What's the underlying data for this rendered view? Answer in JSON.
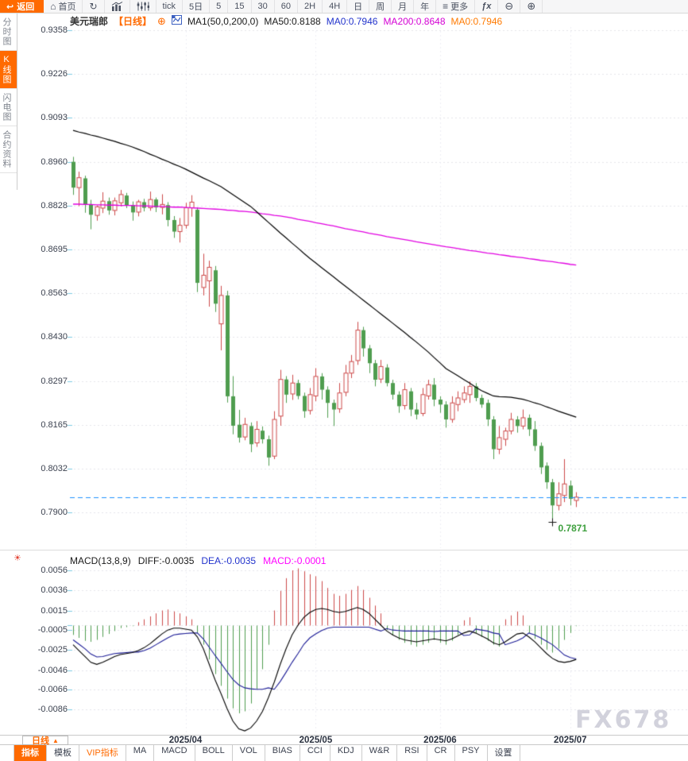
{
  "toolbar": {
    "back_label": "返回",
    "items": [
      {
        "icon": "home-icon",
        "label": "首页"
      },
      {
        "icon": "refresh-icon",
        "label": ""
      },
      {
        "icon": "bar-chart-icon",
        "label": ""
      },
      {
        "icon": "candles-adjust-icon",
        "label": ""
      },
      {
        "label": "tick"
      },
      {
        "label": "5日"
      },
      {
        "label": "5"
      },
      {
        "label": "15"
      },
      {
        "label": "30"
      },
      {
        "label": "60"
      },
      {
        "label": "2H"
      },
      {
        "label": "4H"
      },
      {
        "label": "日"
      },
      {
        "label": "周"
      },
      {
        "label": "月"
      },
      {
        "label": "年"
      },
      {
        "icon": "menu-icon",
        "label": "更多"
      },
      {
        "icon": "fx-icon",
        "label": ""
      },
      {
        "icon": "zoom-out-icon",
        "label": ""
      },
      {
        "icon": "zoom-in-icon",
        "label": ""
      }
    ]
  },
  "sidebar": {
    "items": [
      {
        "label": "分时图",
        "active": false
      },
      {
        "label": "K线图",
        "active": true
      },
      {
        "label": "闪电图",
        "active": false
      },
      {
        "label": "合约资料",
        "active": false
      }
    ]
  },
  "chart_header": {
    "symbol": "美元瑞郎",
    "period_tag": "【日线】",
    "ma_settings": "MA1(50,0,200,0)",
    "ma50": "MA50:0.8188",
    "ma0_fast": "MA0:0.7946",
    "ma200": "MA200:0.8648",
    "ma0_slow": "MA0:0.7946"
  },
  "macd_header": {
    "title": "MACD(13,8,9)",
    "diff": "DIFF:-0.0035",
    "dea": "DEA:-0.0035",
    "macd": "MACD:-0.0001"
  },
  "x_axis": {
    "period_label": "日线"
  },
  "watermark": "FX678",
  "bottom_tabs": [
    {
      "label": "指标",
      "active": true
    },
    {
      "label": "模板"
    },
    {
      "label": "VIP指标",
      "vip": true
    },
    {
      "label": "MA"
    },
    {
      "label": "MACD"
    },
    {
      "label": "BOLL"
    },
    {
      "label": "VOL"
    },
    {
      "label": "BIAS"
    },
    {
      "label": "CCI"
    },
    {
      "label": "KDJ"
    },
    {
      "label": "W&R"
    },
    {
      "label": "RSI"
    },
    {
      "label": "CR"
    },
    {
      "label": "PSY"
    },
    {
      "label": "设置"
    }
  ],
  "colors": {
    "accent_orange": "#ff6a00",
    "up_red": "#cd4a4a",
    "down_green": "#4f9d4f",
    "ma50_black": "#000000",
    "ma200_magenta": "#e100e1",
    "diff_black": "#000000",
    "dea_blue": "#1c1c96",
    "price_line_blue": "#1e90ff",
    "low_label_green": "#3fa03f",
    "grid_gray": "#e4e4ea",
    "axis_tick_cyan": "#7ecbe3",
    "watermark_gray": "#d2d2dc"
  },
  "chart_data": {
    "type": "candlestick+macd",
    "symbol": "USD/CHF 美元瑞郎",
    "period": "日线 (daily)",
    "price_scale": 0.0001,
    "y_ticks": [
      "0.9358",
      "0.9226",
      "0.9093",
      "0.8960",
      "0.8828",
      "0.8695",
      "0.8563",
      "0.8430",
      "0.8297",
      "0.8165",
      "0.8032",
      "0.7900"
    ],
    "ylim": [
      0.79,
      0.9358
    ],
    "month_ticks": [
      {
        "label": "2025/04",
        "index": 19
      },
      {
        "label": "2025/05",
        "index": 41
      },
      {
        "label": "2025/06",
        "index": 62
      },
      {
        "label": "2025/07",
        "index": 84
      }
    ],
    "current_price": 0.7946,
    "low_marker": {
      "index": 81,
      "price": 0.7871,
      "label": "0.7871"
    },
    "candles_ohlc": [
      [
        8960,
        8975,
        8860,
        8882
      ],
      [
        8882,
        8930,
        8826,
        8912
      ],
      [
        8910,
        8918,
        8806,
        8830
      ],
      [
        8832,
        8845,
        8756,
        8800
      ],
      [
        8798,
        8828,
        8782,
        8824
      ],
      [
        8820,
        8868,
        8805,
        8841
      ],
      [
        8841,
        8852,
        8800,
        8813
      ],
      [
        8813,
        8852,
        8798,
        8842
      ],
      [
        8836,
        8875,
        8825,
        8861
      ],
      [
        8858,
        8866,
        8820,
        8829
      ],
      [
        8829,
        8840,
        8782,
        8807
      ],
      [
        8808,
        8845,
        8795,
        8839
      ],
      [
        8838,
        8848,
        8810,
        8821
      ],
      [
        8821,
        8870,
        8812,
        8846
      ],
      [
        8846,
        8852,
        8808,
        8822
      ],
      [
        8822,
        8862,
        8801,
        8831
      ],
      [
        8829,
        8838,
        8765,
        8784
      ],
      [
        8784,
        8796,
        8730,
        8749
      ],
      [
        8749,
        8790,
        8716,
        8768
      ],
      [
        8768,
        8836,
        8758,
        8821
      ],
      [
        8821,
        8859,
        8794,
        8838
      ],
      [
        8815,
        8822,
        8566,
        8594
      ],
      [
        8580,
        8682,
        8556,
        8617
      ],
      [
        8600,
        8661,
        8522,
        8641
      ],
      [
        8632,
        8645,
        8506,
        8531
      ],
      [
        8470,
        8585,
        8390,
        8556
      ],
      [
        8556,
        8570,
        8232,
        8251
      ],
      [
        8251,
        8312,
        8136,
        8162
      ],
      [
        8165,
        8210,
        8111,
        8126
      ],
      [
        8128,
        8186,
        8118,
        8166
      ],
      [
        8161,
        8172,
        8082,
        8106
      ],
      [
        8110,
        8176,
        8098,
        8151
      ],
      [
        8147,
        8160,
        8108,
        8121
      ],
      [
        8121,
        8132,
        8041,
        8066
      ],
      [
        8070,
        8206,
        8061,
        8181
      ],
      [
        8191,
        8331,
        8162,
        8302
      ],
      [
        8302,
        8312,
        8231,
        8256
      ],
      [
        8258,
        8316,
        8240,
        8291
      ],
      [
        8291,
        8301,
        8242,
        8252
      ],
      [
        8252,
        8262,
        8186,
        8206
      ],
      [
        8208,
        8276,
        8196,
        8256
      ],
      [
        8252,
        8336,
        8236,
        8311
      ],
      [
        8311,
        8321,
        8241,
        8271
      ],
      [
        8271,
        8281,
        8186,
        8231
      ],
      [
        8231,
        8241,
        8161,
        8211
      ],
      [
        8213,
        8291,
        8201,
        8261
      ],
      [
        8263,
        8346,
        8251,
        8321
      ],
      [
        8321,
        8376,
        8306,
        8356
      ],
      [
        8359,
        8476,
        8346,
        8451
      ],
      [
        8451,
        8461,
        8371,
        8396
      ],
      [
        8396,
        8406,
        8321,
        8351
      ],
      [
        8351,
        8361,
        8281,
        8301
      ],
      [
        8303,
        8361,
        8291,
        8341
      ],
      [
        8338,
        8348,
        8281,
        8291
      ],
      [
        8291,
        8301,
        8241,
        8256
      ],
      [
        8256,
        8266,
        8201,
        8221
      ],
      [
        8223,
        8291,
        8211,
        8271
      ],
      [
        8266,
        8276,
        8191,
        8211
      ],
      [
        8211,
        8231,
        8181,
        8196
      ],
      [
        8199,
        8276,
        8191,
        8256
      ],
      [
        8252,
        8301,
        8241,
        8286
      ],
      [
        8286,
        8306,
        8221,
        8241
      ],
      [
        8241,
        8251,
        8201,
        8226
      ],
      [
        8226,
        8236,
        8156,
        8181
      ],
      [
        8181,
        8251,
        8171,
        8231
      ],
      [
        8226,
        8266,
        8206,
        8246
      ],
      [
        8241,
        8281,
        8231,
        8261
      ],
      [
        8256,
        8296,
        8231,
        8281
      ],
      [
        8281,
        8291,
        8236,
        8246
      ],
      [
        8246,
        8256,
        8216,
        8226
      ],
      [
        8231,
        8241,
        8161,
        8181
      ],
      [
        8181,
        8191,
        8061,
        8091
      ],
      [
        8091,
        8161,
        8076,
        8126
      ],
      [
        8121,
        8156,
        8101,
        8146
      ],
      [
        8146,
        8201,
        8136,
        8181
      ],
      [
        8181,
        8191,
        8141,
        8161
      ],
      [
        8161,
        8211,
        8151,
        8186
      ],
      [
        8186,
        8196,
        8131,
        8151
      ],
      [
        8151,
        8176,
        8086,
        8101
      ],
      [
        8101,
        8111,
        8016,
        8036
      ],
      [
        8041,
        8051,
        7971,
        7991
      ],
      [
        7991,
        8001,
        7871,
        7921
      ],
      [
        7921,
        7991,
        7906,
        7956
      ],
      [
        7951,
        8061,
        7931,
        7986
      ],
      [
        7981,
        7996,
        7921,
        7941
      ],
      [
        7936,
        7961,
        7916,
        7946
      ]
    ],
    "ma50": [
      9055,
      9050,
      9046,
      9041,
      9037,
      9032,
      9027,
      9022,
      9016,
      9011,
      9005,
      8998,
      8991,
      8983,
      8976,
      8968,
      8961,
      8953,
      8946,
      8938,
      8929,
      8920,
      8911,
      8903,
      8894,
      8885,
      8873,
      8861,
      8849,
      8837,
      8825,
      8809,
      8793,
      8777,
      8761,
      8745,
      8730,
      8714,
      8699,
      8683,
      8668,
      8654,
      8640,
      8626,
      8612,
      8598,
      8584,
      8570,
      8556,
      8542,
      8528,
      8514,
      8500,
      8486,
      8472,
      8458,
      8444,
      8429,
      8415,
      8400,
      8385,
      8368,
      8352,
      8335,
      8324,
      8313,
      8302,
      8291,
      8279,
      8268,
      8260,
      8252,
      8250,
      8249,
      8248,
      8245,
      8242,
      8237,
      8231,
      8226,
      8219,
      8213,
      8206,
      8200,
      8194,
      8188
    ],
    "ma200": [
      8832,
      8832,
      8831,
      8831,
      8830,
      8830,
      8829,
      8829,
      8828,
      8828,
      8828,
      8827,
      8827,
      8826,
      8825,
      8825,
      8824,
      8823,
      8823,
      8822,
      8821,
      8820,
      8819,
      8818,
      8817,
      8816,
      8814,
      8813,
      8811,
      8810,
      8808,
      8806,
      8803,
      8801,
      8798,
      8796,
      8793,
      8790,
      8786,
      8783,
      8780,
      8776,
      8773,
      8769,
      8766,
      8762,
      8758,
      8755,
      8751,
      8748,
      8744,
      8741,
      8738,
      8734,
      8731,
      8728,
      8725,
      8722,
      8718,
      8715,
      8712,
      8709,
      8706,
      8703,
      8701,
      8698,
      8695,
      8692,
      8690,
      8687,
      8684,
      8682,
      8679,
      8677,
      8674,
      8672,
      8670,
      8667,
      8665,
      8662,
      8660,
      8658,
      8655,
      8653,
      8650,
      8648
    ],
    "macd": {
      "params": "13,8,9",
      "value_scale": 0.0001,
      "y_ticks": [
        "0.0056",
        "0.0036",
        "0.0015",
        "-0.0005",
        "-0.0025",
        "-0.0046",
        "-0.0066",
        "-0.0086"
      ],
      "hist": [
        -10,
        -13,
        -16,
        -17,
        -15,
        -12,
        -9,
        -6,
        -3,
        -2,
        -1,
        3,
        6,
        9,
        12,
        15,
        16,
        14,
        12,
        9,
        6,
        -8,
        -20,
        -35,
        -50,
        -62,
        -75,
        -85,
        -90,
        -88,
        -80,
        -65,
        -45,
        -20,
        15,
        35,
        48,
        56,
        58,
        55,
        52,
        50,
        45,
        38,
        32,
        30,
        32,
        36,
        40,
        36,
        28,
        20,
        12,
        -5,
        -10,
        -15,
        -18,
        -20,
        -22,
        -20,
        -18,
        -15,
        -18,
        -20,
        -16,
        -10,
        5,
        8,
        -8,
        -12,
        -16,
        -20,
        -22,
        6,
        10,
        14,
        10,
        -8,
        -14,
        -20,
        -25,
        -28,
        -24,
        -15,
        -8,
        -1
      ],
      "diff": [
        -20,
        -26,
        -32,
        -38,
        -40,
        -38,
        -35,
        -32,
        -30,
        -29,
        -28,
        -26,
        -23,
        -19,
        -14,
        -9,
        -5,
        -3,
        -3,
        -4,
        -5,
        -12,
        -24,
        -40,
        -56,
        -70,
        -85,
        -98,
        -106,
        -108,
        -105,
        -98,
        -88,
        -74,
        -58,
        -40,
        -24,
        -10,
        0,
        8,
        13,
        16,
        17,
        16,
        14,
        13,
        14,
        16,
        18,
        16,
        12,
        6,
        0,
        -6,
        -10,
        -13,
        -15,
        -16,
        -17,
        -16,
        -15,
        -14,
        -15,
        -16,
        -14,
        -11,
        -8,
        -6,
        -8,
        -11,
        -14,
        -18,
        -20,
        -17,
        -13,
        -9,
        -8,
        -12,
        -17,
        -23,
        -29,
        -34,
        -37,
        -38,
        -37,
        -35
      ]
    }
  }
}
